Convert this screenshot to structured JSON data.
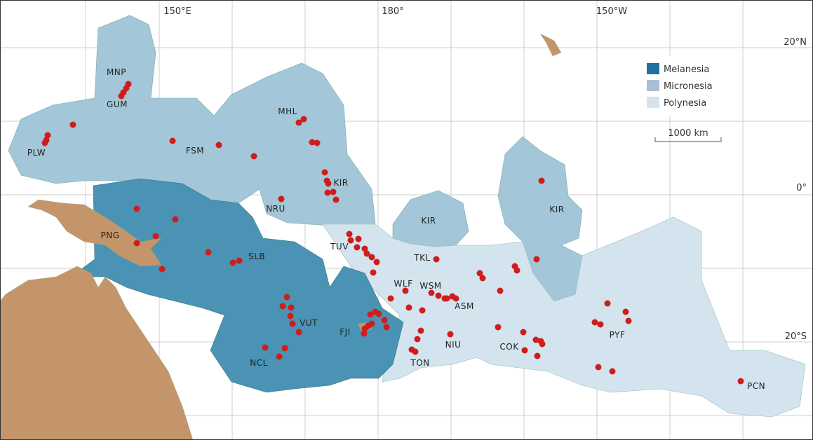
{
  "axes": {
    "top": [
      "150°E",
      "180°",
      "150°W"
    ],
    "right": [
      "20°N",
      "0°",
      "20°S"
    ]
  },
  "legend": {
    "items": [
      "Melanesia",
      "Micronesia",
      "Polynesia"
    ],
    "scale": "1000 km"
  },
  "territories": [
    "MNP",
    "GUM",
    "PLW",
    "FSM",
    "MHL",
    "KIR",
    "NRU",
    "PNG",
    "SLB",
    "TUV",
    "KIR",
    "KIR",
    "TKL",
    "WLF",
    "WSM",
    "ASM",
    "VUT",
    "FJI",
    "NCL",
    "TON",
    "NIU",
    "COK",
    "PYF",
    "PCN"
  ]
}
